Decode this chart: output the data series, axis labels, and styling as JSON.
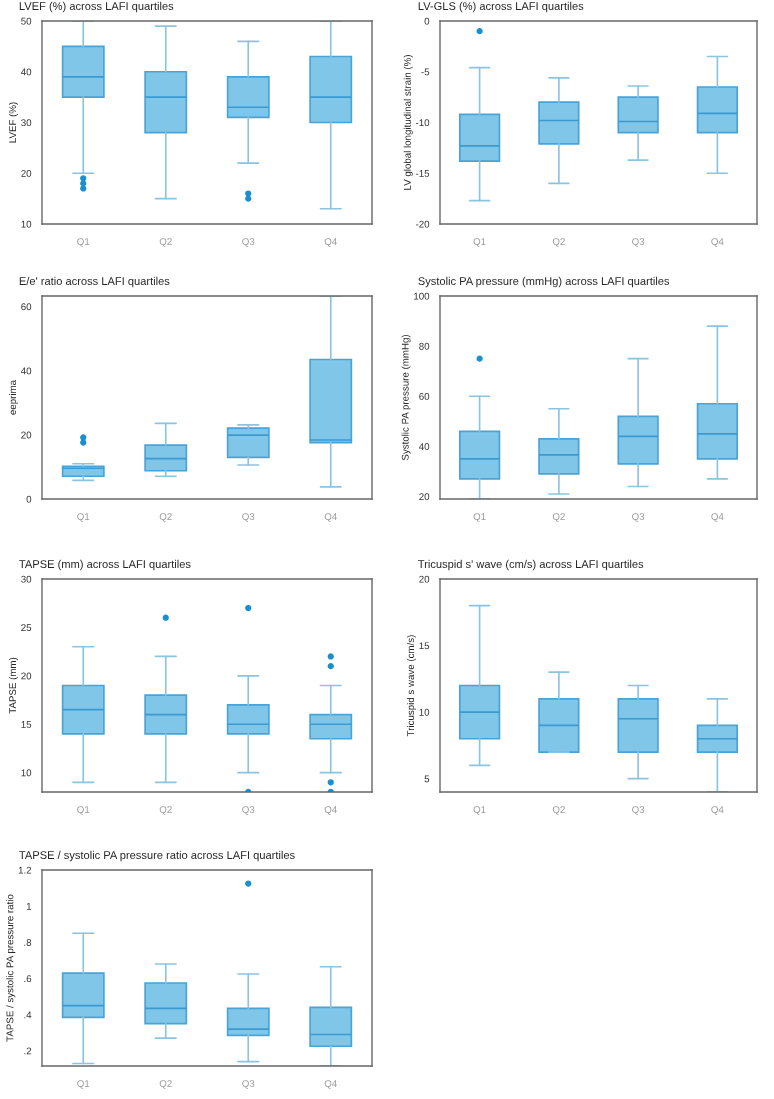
{
  "chart_data": [
    {
      "type": "box",
      "title": "LVEF (%) across LAFI quartiles",
      "ylabel": "LVEF (%)",
      "categories": [
        "Q1",
        "Q2",
        "Q3",
        "Q4"
      ],
      "ylim": [
        10,
        50
      ],
      "yticks": [
        10,
        20,
        30,
        40,
        50
      ],
      "grid": false,
      "series": [
        {
          "color": "#7fc6e8",
          "boxes": [
            {
              "low": 20,
              "q1": 35,
              "median": 39,
              "q3": 45,
              "high": 50,
              "outliers": [
                17,
                18,
                19
              ]
            },
            {
              "low": 15,
              "q1": 28,
              "median": 35,
              "q3": 40,
              "high": 49
            },
            {
              "low": 22,
              "q1": 31,
              "median": 33,
              "q3": 39,
              "high": 46,
              "outliers": [
                15,
                16
              ]
            },
            {
              "low": 13,
              "q1": 30,
              "median": 35,
              "q3": 43,
              "high": 50
            }
          ]
        }
      ]
    },
    {
      "type": "box",
      "title": "LV-GLS (%) across LAFI quartiles",
      "ylabel": "LV global longitudinal strain (%)",
      "categories": [
        "Q1",
        "Q2",
        "Q3",
        "Q4"
      ],
      "ylim": [
        -20,
        0
      ],
      "yticks": [
        -20,
        -15,
        -10,
        -5,
        0
      ],
      "grid": false,
      "series": [
        {
          "color": "#7fc6e8",
          "boxes": [
            {
              "low": -17.7,
              "q1": -13.8,
              "median": -12.3,
              "q3": -9.2,
              "high": -4.6,
              "outliers": [
                -1.0
              ]
            },
            {
              "low": -16.0,
              "q1": -12.1,
              "median": -9.8,
              "q3": -8.0,
              "high": -5.6
            },
            {
              "low": -13.7,
              "q1": -11.0,
              "median": -9.9,
              "q3": -7.5,
              "high": -6.4
            },
            {
              "low": -15.0,
              "q1": -11.0,
              "median": -9.1,
              "q3": -6.5,
              "high": -3.5
            }
          ]
        }
      ]
    },
    {
      "type": "box",
      "title": "E/e' ratio across LAFI quartiles",
      "ylabel": "eeprima",
      "categories": [
        "Q1",
        "Q2",
        "Q3",
        "Q4"
      ],
      "ylim": [
        0,
        63.3
      ],
      "yticks": [
        0,
        20,
        40,
        60
      ],
      "grid": false,
      "series": [
        {
          "color": "#7fc6e8",
          "boxes": [
            {
              "low": 5.8,
              "q1": 7.1,
              "median": 9.6,
              "q3": 10.2,
              "high": 11.0,
              "outliers": [
                17.6,
                19.2
              ]
            },
            {
              "low": 7.1,
              "q1": 8.8,
              "median": 12.6,
              "q3": 16.8,
              "high": 23.6
            },
            {
              "low": 10.6,
              "q1": 13.0,
              "median": 19.9,
              "q3": 22.1,
              "high": 23.1
            },
            {
              "low": 3.8,
              "q1": 17.6,
              "median": 18.4,
              "q3": 43.5,
              "high": 63.3
            }
          ]
        }
      ]
    },
    {
      "type": "box",
      "title": "Systolic PA pressure (mmHg) across LAFI quartiles",
      "ylabel": "Systolic PA pressure (mmHg)",
      "categories": [
        "Q1",
        "Q2",
        "Q3",
        "Q4"
      ],
      "ylim": [
        19,
        100
      ],
      "yticks": [
        20,
        40,
        60,
        80,
        100
      ],
      "grid": false,
      "series": [
        {
          "color": "#7fc6e8",
          "boxes": [
            {
              "low": 19,
              "q1": 27,
              "median": 35,
              "q3": 46,
              "high": 60,
              "outliers": [
                75
              ]
            },
            {
              "low": 21,
              "q1": 29,
              "median": 36.6,
              "q3": 43,
              "high": 55
            },
            {
              "low": 24,
              "q1": 33,
              "median": 44,
              "q3": 52,
              "high": 75
            },
            {
              "low": 27,
              "q1": 35,
              "median": 45,
              "q3": 57,
              "high": 88
            }
          ]
        }
      ]
    },
    {
      "type": "box",
      "title": "TAPSE (mm) across LAFI quartiles",
      "ylabel": "TAPSE (mm)",
      "categories": [
        "Q1",
        "Q2",
        "Q3",
        "Q4"
      ],
      "ylim": [
        8,
        30
      ],
      "yticks": [
        10,
        15,
        20,
        25,
        30
      ],
      "grid": false,
      "series": [
        {
          "color": "#7fc6e8",
          "boxes": [
            {
              "low": 9,
              "q1": 14,
              "median": 16.5,
              "q3": 19,
              "high": 23
            },
            {
              "low": 9,
              "q1": 14,
              "median": 16,
              "q3": 18,
              "high": 22,
              "outliers": [
                26
              ]
            },
            {
              "low": 10,
              "q1": 14,
              "median": 15,
              "q3": 17,
              "high": 20,
              "outliers": [
                8,
                27
              ]
            },
            {
              "low": 10,
              "q1": 13.5,
              "median": 15,
              "q3": 16,
              "high": 19,
              "outliers": [
                8,
                9,
                21,
                22
              ]
            }
          ]
        }
      ]
    },
    {
      "type": "box",
      "title": "Tricuspid s' wave (cm/s) across LAFI quartiles",
      "ylabel": "Tricuspid s wave (cm/s)",
      "categories": [
        "Q1",
        "Q2",
        "Q3",
        "Q4"
      ],
      "ylim": [
        4,
        20
      ],
      "yticks": [
        5,
        10,
        15,
        20
      ],
      "grid": false,
      "series": [
        {
          "color": "#7fc6e8",
          "boxes": [
            {
              "low": 6,
              "q1": 8,
              "median": 10,
              "q3": 12,
              "high": 18
            },
            {
              "low": 7,
              "q1": 7,
              "median": 9,
              "q3": 11,
              "high": 13
            },
            {
              "low": 5,
              "q1": 7,
              "median": 9.5,
              "q3": 11,
              "high": 12
            },
            {
              "low": 4,
              "q1": 7,
              "median": 8,
              "q3": 9,
              "high": 11
            }
          ]
        }
      ]
    },
    {
      "type": "box",
      "title": "TAPSE / systolic PA pressure ratio across LAFI quartiles",
      "ylabel": "TAPSE / systolic PA pressure ratio",
      "categories": [
        "Q1",
        "Q2",
        "Q3",
        "Q4"
      ],
      "ylim": [
        0.116,
        1.2
      ],
      "yticks": [
        {
          "value": 0.2,
          "label": ".2"
        },
        {
          "value": 0.4,
          "label": ".4"
        },
        {
          "value": 0.6,
          "label": ".6"
        },
        {
          "value": 0.8,
          "label": ".8"
        },
        1,
        1.2
      ],
      "grid": false,
      "series": [
        {
          "color": "#7fc6e8",
          "boxes": [
            {
              "low": 0.13,
              "q1": 0.385,
              "median": 0.45,
              "q3": 0.63,
              "high": 0.85
            },
            {
              "low": 0.27,
              "q1": 0.35,
              "median": 0.435,
              "q3": 0.575,
              "high": 0.68
            },
            {
              "low": 0.14,
              "q1": 0.285,
              "median": 0.32,
              "q3": 0.435,
              "high": 0.625,
              "outliers": [
                1.125
              ]
            },
            {
              "low": 0.116,
              "q1": 0.225,
              "median": 0.29,
              "q3": 0.44,
              "high": 0.665
            }
          ]
        }
      ]
    }
  ]
}
